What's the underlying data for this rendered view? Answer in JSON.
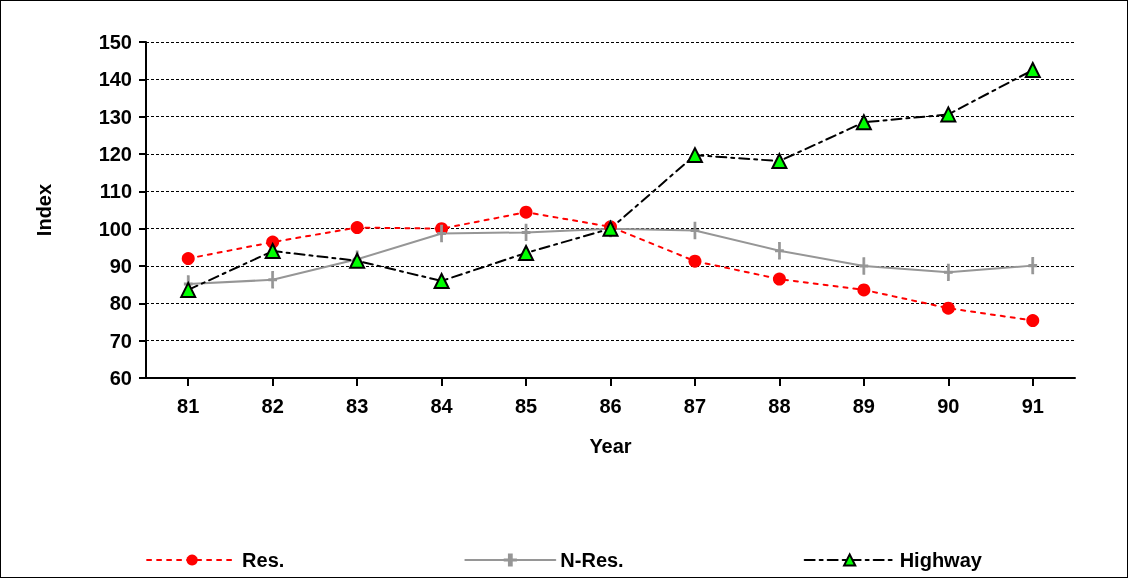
{
  "chart_data": {
    "type": "line",
    "xlabel": "Year",
    "ylabel": "Index",
    "categories": [
      "81",
      "82",
      "83",
      "84",
      "85",
      "86",
      "87",
      "88",
      "89",
      "90",
      "91"
    ],
    "ylim": [
      60,
      150
    ],
    "yticks": [
      60,
      70,
      80,
      90,
      100,
      110,
      120,
      130,
      140,
      150
    ],
    "grid": "y",
    "legend": "bottom",
    "series": [
      {
        "name": "Res.",
        "color": "#ff0000",
        "marker": "circle",
        "line_style": "dotted",
        "values": [
          92,
          96.4,
          100.3,
          100,
          104.4,
          100.5,
          91.3,
          86.5,
          83.6,
          78.7,
          75.4
        ]
      },
      {
        "name": "N-Res.",
        "color": "#969696",
        "marker": "cross",
        "line_style": "solid",
        "values": [
          85.2,
          86.3,
          91.8,
          98.7,
          99,
          100,
          99.5,
          94.1,
          90,
          88.3,
          90.1
        ]
      },
      {
        "name": "Highway",
        "color": "#00ff00",
        "marker": "triangle",
        "line_style": "dashed",
        "values": [
          83.6,
          94,
          91.4,
          86,
          93.5,
          100,
          119.7,
          118.1,
          128.5,
          130.6,
          142.5
        ]
      }
    ]
  }
}
